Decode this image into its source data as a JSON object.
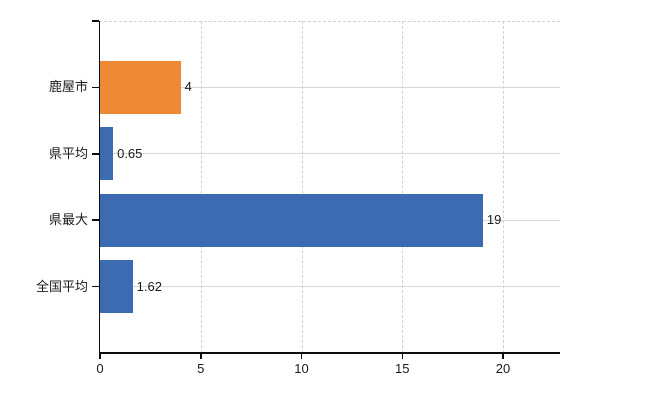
{
  "chart_data": {
    "type": "bar",
    "orientation": "horizontal",
    "title": "",
    "xlabel": "",
    "ylabel": "",
    "categories": [
      "鹿屋市",
      "県平均",
      "県最大",
      "全国平均"
    ],
    "values": [
      4,
      0.65,
      19,
      1.62
    ],
    "value_labels": [
      "4",
      "0.65",
      "19",
      "1.62"
    ],
    "bar_colors": [
      "#ee8a35",
      "#3c6bb2",
      "#3c6bb2",
      "#3c6bb2"
    ],
    "x_ticks": [
      0,
      5,
      10,
      15,
      20
    ],
    "x_tick_labels": [
      "0",
      "5",
      "10",
      "15",
      "20"
    ],
    "xlim": [
      0,
      22.83
    ],
    "grid": {
      "vertical": "dashed",
      "horizontal": "solid"
    },
    "legend_position": "none"
  },
  "colors": {
    "background": "#ffffff",
    "axis": "#0d0d0d",
    "horizontal_gridline": "#d4dad2",
    "vertical_gridline": "#cfd2cf",
    "text": "#1a1a1a",
    "bar_blue": "#3c6bb2",
    "bar_orange": "#ee8a35"
  }
}
